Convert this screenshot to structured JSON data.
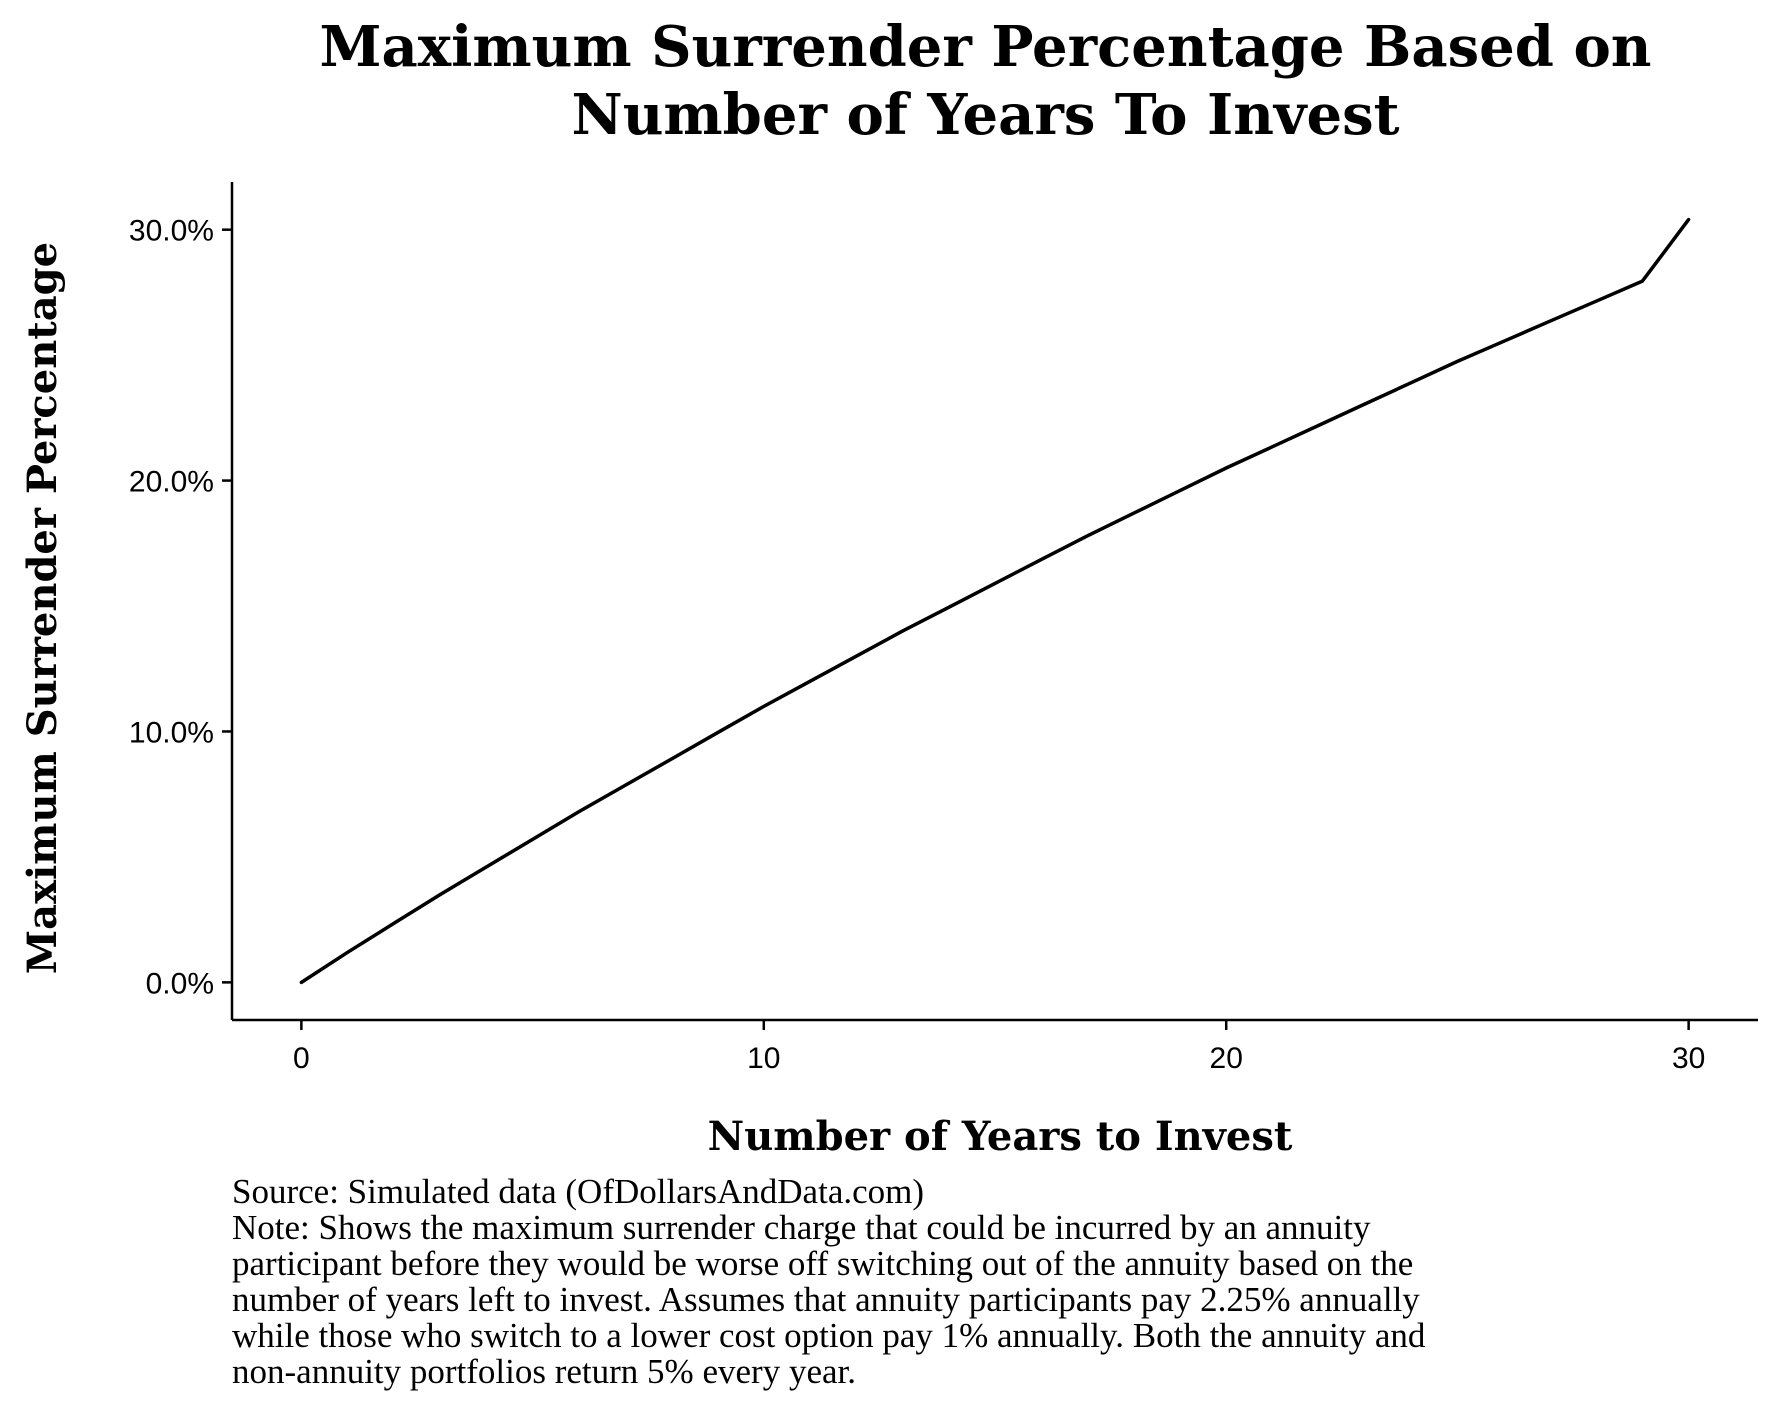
{
  "chart_data": {
    "type": "line",
    "title_lines": [
      "Maximum Surrender Percentage Based on",
      "Number of Years To Invest"
    ],
    "xlabel": "Number of Years to Invest",
    "ylabel": "Maximum Surrender Percentage",
    "xlim": [
      -1.5,
      31.5
    ],
    "ylim": [
      -1.5,
      31.9
    ],
    "xticks": [
      0,
      10,
      20,
      30
    ],
    "xtick_labels": [
      "0",
      "10",
      "20",
      "30"
    ],
    "yticks": [
      0,
      10,
      20,
      30
    ],
    "ytick_labels": [
      "0.0%",
      "10.0%",
      "20.0%",
      "30.0%"
    ],
    "grid": false,
    "legend": "none",
    "series": [
      {
        "color": "#000000",
        "x": [
          0,
          1,
          2,
          3,
          4,
          5,
          6,
          7,
          8,
          9,
          10,
          11,
          12,
          13,
          14,
          15,
          16,
          17,
          18,
          19,
          20,
          21,
          22,
          23,
          24,
          25,
          26,
          27,
          28,
          29,
          30
        ],
        "y": [
          0.0,
          1.2,
          2.35,
          3.5,
          4.6,
          5.7,
          6.8,
          7.85,
          8.9,
          9.95,
          11.0,
          12.0,
          13.0,
          14.0,
          14.95,
          15.9,
          16.85,
          17.8,
          18.7,
          19.6,
          20.5,
          21.35,
          22.2,
          23.05,
          23.9,
          24.75,
          25.55,
          26.35,
          27.15,
          27.95,
          30.4
        ]
      }
    ]
  },
  "caption": {
    "source": "Source: Simulated data (OfDollarsAndData.com)",
    "note_lines": [
      "Note: Shows the maximum surrender charge that could be incurred by an annuity",
      "participant before they would be worse off switching out of the annuity based on the",
      "number of years left to invest. Assumes that annuity participants pay 2.25% annually",
      "while those who switch to a lower cost option pay 1% annually. Both the annuity and",
      "non-annuity portfolios return 5% every year."
    ]
  }
}
